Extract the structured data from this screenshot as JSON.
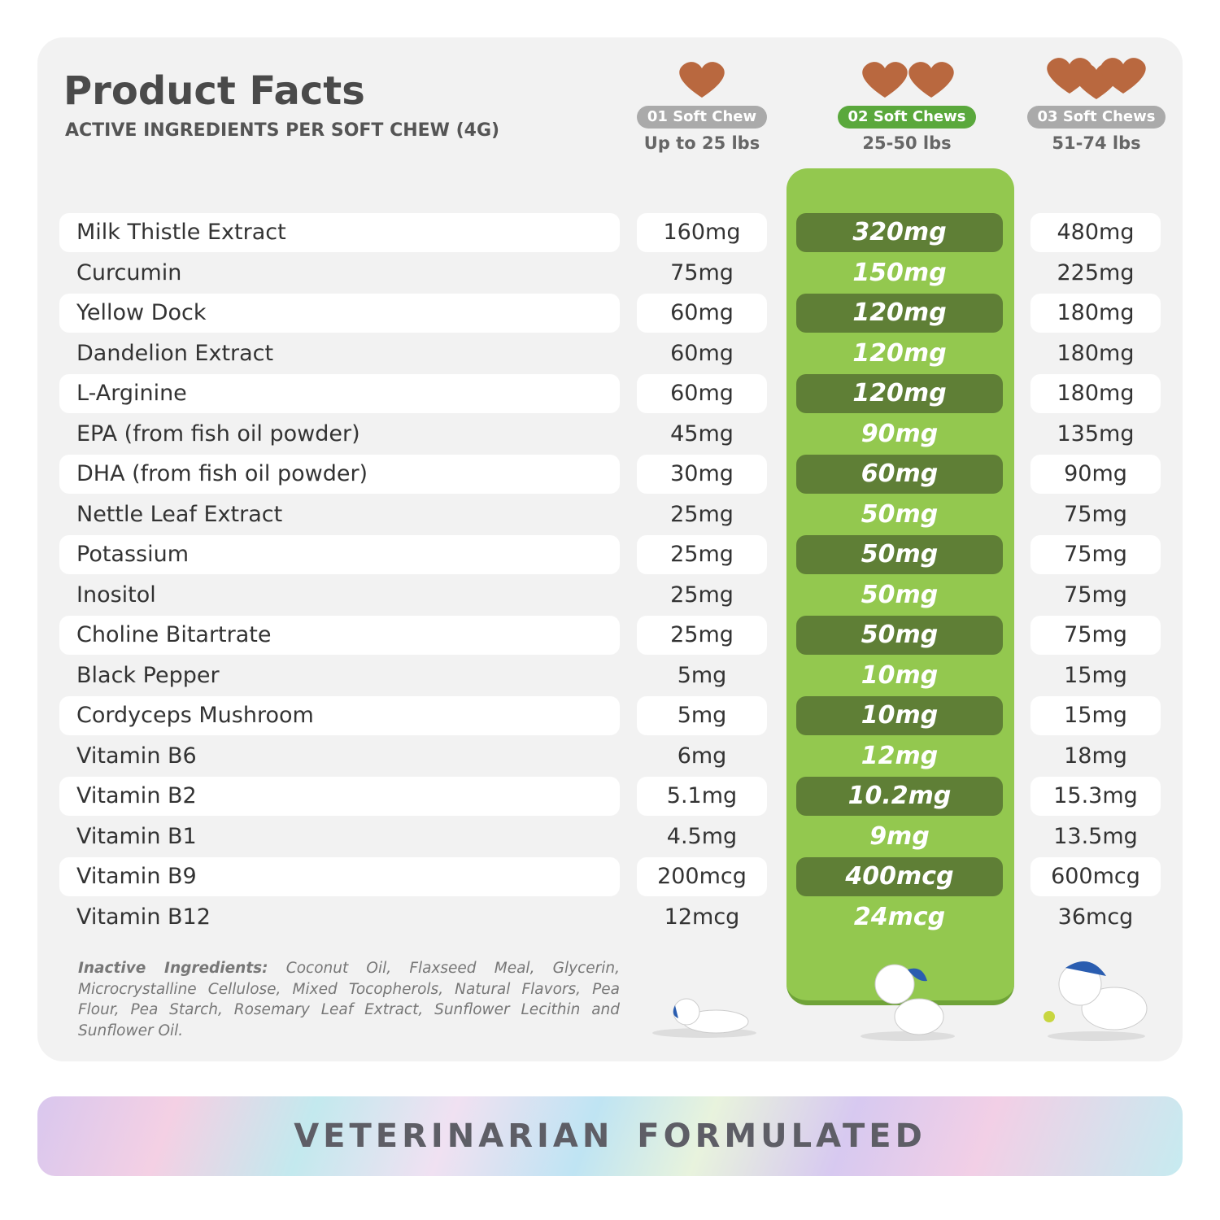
{
  "header": {
    "title": "Product Facts",
    "subtitle": "ACTIVE INGREDIENTS PER SOFT CHEW (4G)"
  },
  "columns": [
    {
      "badge": "01 Soft Chew",
      "weight": "Up to 25 lbs"
    },
    {
      "badge": "02 Soft Chews",
      "weight": "25-50 lbs"
    },
    {
      "badge": "03 Soft Chews",
      "weight": "51-74 lbs"
    }
  ],
  "rows": [
    {
      "name": "Milk Thistle Extract",
      "values": [
        "160mg",
        "320mg",
        "480mg"
      ]
    },
    {
      "name": "Curcumin",
      "values": [
        "75mg",
        "150mg",
        "225mg"
      ]
    },
    {
      "name": "Yellow Dock",
      "values": [
        "60mg",
        "120mg",
        "180mg"
      ]
    },
    {
      "name": "Dandelion Extract",
      "values": [
        "60mg",
        "120mg",
        "180mg"
      ]
    },
    {
      "name": "L-Arginine",
      "values": [
        "60mg",
        "120mg",
        "180mg"
      ]
    },
    {
      "name": "EPA (from fish oil powder)",
      "values": [
        "45mg",
        "90mg",
        "135mg"
      ]
    },
    {
      "name": "DHA (from fish oil powder)",
      "values": [
        "30mg",
        "60mg",
        "90mg"
      ]
    },
    {
      "name": "Nettle Leaf Extract",
      "values": [
        "25mg",
        "50mg",
        "75mg"
      ]
    },
    {
      "name": "Potassium",
      "values": [
        "25mg",
        "50mg",
        "75mg"
      ]
    },
    {
      "name": "Inositol",
      "values": [
        "25mg",
        "50mg",
        "75mg"
      ]
    },
    {
      "name": "Choline Bitartrate",
      "values": [
        "25mg",
        "50mg",
        "75mg"
      ]
    },
    {
      "name": "Black Pepper",
      "values": [
        "5mg",
        "10mg",
        "15mg"
      ]
    },
    {
      "name": "Cordyceps Mushroom",
      "values": [
        "5mg",
        "10mg",
        "15mg"
      ]
    },
    {
      "name": "Vitamin B6",
      "values": [
        "6mg",
        "12mg",
        "18mg"
      ]
    },
    {
      "name": "Vitamin B2",
      "values": [
        "5.1mg",
        "10.2mg",
        "15.3mg"
      ]
    },
    {
      "name": "Vitamin B1",
      "values": [
        "4.5mg",
        "9mg",
        "13.5mg"
      ]
    },
    {
      "name": "Vitamin B9",
      "values": [
        "200mcg",
        "400mcg",
        "600mcg"
      ]
    },
    {
      "name": "Vitamin B12",
      "values": [
        "12mcg",
        "24mcg",
        "36mcg"
      ]
    }
  ],
  "inactive": {
    "label": "Inactive Ingredients:",
    "text": "Coconut Oil, Flaxseed Meal, Glycerin, Microcrystalline Cellulose, Mixed Tocopherols, Natural Flavors, Pea Flour, Pea Starch, Rosemary Leaf Extract, Sunflower Lecithin and Sunflower Oil."
  },
  "footer": {
    "text": "VETERINARIAN FORMULATED"
  }
}
